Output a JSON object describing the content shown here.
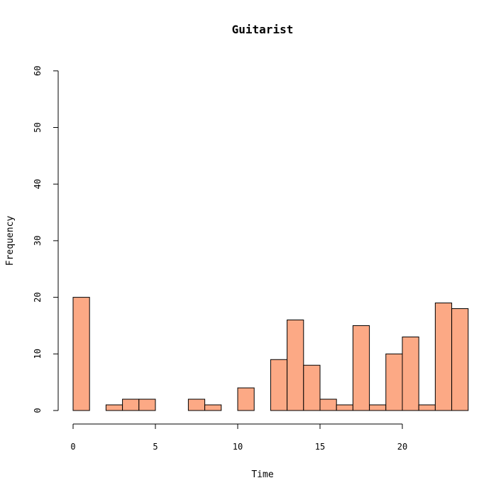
{
  "chart_data": {
    "type": "bar",
    "title": "Guitarist",
    "xlabel": "Time",
    "ylabel": "Frequency",
    "bin_width": 1,
    "bins": [
      {
        "start": 0,
        "end": 1,
        "count": 20
      },
      {
        "start": 1,
        "end": 2,
        "count": 0
      },
      {
        "start": 2,
        "end": 3,
        "count": 1
      },
      {
        "start": 3,
        "end": 4,
        "count": 2
      },
      {
        "start": 4,
        "end": 5,
        "count": 2
      },
      {
        "start": 5,
        "end": 6,
        "count": 0
      },
      {
        "start": 6,
        "end": 7,
        "count": 0
      },
      {
        "start": 7,
        "end": 8,
        "count": 2
      },
      {
        "start": 8,
        "end": 9,
        "count": 1
      },
      {
        "start": 9,
        "end": 10,
        "count": 0
      },
      {
        "start": 10,
        "end": 11,
        "count": 4
      },
      {
        "start": 11,
        "end": 12,
        "count": 0
      },
      {
        "start": 12,
        "end": 13,
        "count": 9
      },
      {
        "start": 13,
        "end": 14,
        "count": 16
      },
      {
        "start": 14,
        "end": 15,
        "count": 8
      },
      {
        "start": 15,
        "end": 16,
        "count": 2
      },
      {
        "start": 16,
        "end": 17,
        "count": 1
      },
      {
        "start": 17,
        "end": 18,
        "count": 15
      },
      {
        "start": 18,
        "end": 19,
        "count": 1
      },
      {
        "start": 19,
        "end": 20,
        "count": 10
      },
      {
        "start": 20,
        "end": 21,
        "count": 13
      },
      {
        "start": 21,
        "end": 22,
        "count": 1
      },
      {
        "start": 22,
        "end": 23,
        "count": 19
      },
      {
        "start": 23,
        "end": 24,
        "count": 18
      }
    ],
    "xlim": [
      0,
      24
    ],
    "ylim": [
      0,
      60
    ],
    "xticks": [
      0,
      5,
      10,
      15,
      20
    ],
    "yticks": [
      0,
      10,
      20,
      30,
      40,
      50,
      60
    ],
    "bar_color": "#FCA985",
    "bar_border_color": "#000000",
    "grid": false,
    "legend": "none"
  }
}
